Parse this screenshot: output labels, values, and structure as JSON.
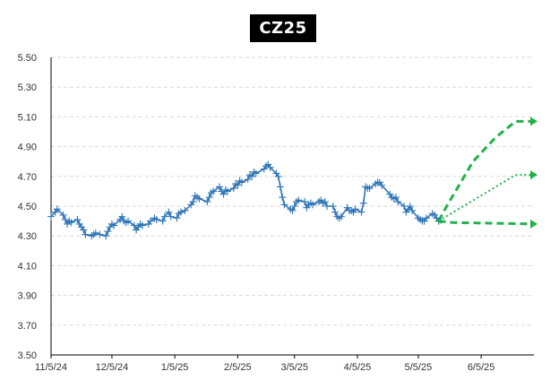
{
  "chart_data": {
    "type": "line",
    "title": "CZ25",
    "xlabel": "",
    "ylabel": "",
    "ylim": [
      3.5,
      5.5
    ],
    "yticks": [
      "5.50",
      "5.30",
      "5.10",
      "4.90",
      "4.70",
      "4.50",
      "4.30",
      "4.10",
      "3.90",
      "3.70",
      "3.50"
    ],
    "xticks": [
      {
        "date": "2024-11-05",
        "label": "11/5/24"
      },
      {
        "date": "2024-12-05",
        "label": "12/5/24"
      },
      {
        "date": "2025-01-05",
        "label": "1/5/25"
      },
      {
        "date": "2025-02-05",
        "label": "2/5/25"
      },
      {
        "date": "2025-03-05",
        "label": "3/5/25"
      },
      {
        "date": "2025-04-05",
        "label": "4/5/25"
      },
      {
        "date": "2025-05-05",
        "label": "5/5/25"
      },
      {
        "date": "2025-06-05",
        "label": "6/5/25"
      }
    ],
    "xlim": [
      "2024-11-05",
      "2025-07-01"
    ],
    "grid": true,
    "legend": "none",
    "series": [
      {
        "color": "#2e75b6",
        "style": "solid",
        "marker": "plus",
        "points": [
          [
            "2024-11-05",
            4.43
          ],
          [
            "2024-11-07",
            4.46
          ],
          [
            "2024-11-08",
            4.48
          ],
          [
            "2024-11-11",
            4.44
          ],
          [
            "2024-11-12",
            4.41
          ],
          [
            "2024-11-13",
            4.38
          ],
          [
            "2024-11-14",
            4.4
          ],
          [
            "2024-11-15",
            4.39
          ],
          [
            "2024-11-18",
            4.41
          ],
          [
            "2024-11-19",
            4.38
          ],
          [
            "2024-11-20",
            4.36
          ],
          [
            "2024-11-21",
            4.34
          ],
          [
            "2024-11-22",
            4.31
          ],
          [
            "2024-11-25",
            4.3
          ],
          [
            "2024-11-26",
            4.31
          ],
          [
            "2024-11-27",
            4.32
          ],
          [
            "2024-11-29",
            4.31
          ],
          [
            "2024-12-02",
            4.3
          ],
          [
            "2024-12-03",
            4.33
          ],
          [
            "2024-12-04",
            4.36
          ],
          [
            "2024-12-05",
            4.38
          ],
          [
            "2024-12-06",
            4.37
          ],
          [
            "2024-12-09",
            4.41
          ],
          [
            "2024-12-10",
            4.43
          ],
          [
            "2024-12-11",
            4.4
          ],
          [
            "2024-12-12",
            4.39
          ],
          [
            "2024-12-13",
            4.4
          ],
          [
            "2024-12-16",
            4.37
          ],
          [
            "2024-12-17",
            4.34
          ],
          [
            "2024-12-18",
            4.36
          ],
          [
            "2024-12-19",
            4.38
          ],
          [
            "2024-12-20",
            4.37
          ],
          [
            "2024-12-23",
            4.38
          ],
          [
            "2024-12-24",
            4.4
          ],
          [
            "2024-12-26",
            4.42
          ],
          [
            "2024-12-27",
            4.41
          ],
          [
            "2024-12-30",
            4.4
          ],
          [
            "2024-12-31",
            4.43
          ],
          [
            "2025-01-02",
            4.46
          ],
          [
            "2025-01-03",
            4.43
          ],
          [
            "2025-01-06",
            4.42
          ],
          [
            "2025-01-07",
            4.45
          ],
          [
            "2025-01-08",
            4.46
          ],
          [
            "2025-01-10",
            4.47
          ],
          [
            "2025-01-13",
            4.51
          ],
          [
            "2025-01-14",
            4.53
          ],
          [
            "2025-01-15",
            4.57
          ],
          [
            "2025-01-16",
            4.56
          ],
          [
            "2025-01-17",
            4.55
          ],
          [
            "2025-01-21",
            4.53
          ],
          [
            "2025-01-22",
            4.56
          ],
          [
            "2025-01-23",
            4.59
          ],
          [
            "2025-01-24",
            4.6
          ],
          [
            "2025-01-27",
            4.63
          ],
          [
            "2025-01-28",
            4.6
          ],
          [
            "2025-01-29",
            4.58
          ],
          [
            "2025-01-30",
            4.61
          ],
          [
            "2025-01-31",
            4.6
          ],
          [
            "2025-02-03",
            4.62
          ],
          [
            "2025-02-04",
            4.65
          ],
          [
            "2025-02-05",
            4.64
          ],
          [
            "2025-02-06",
            4.67
          ],
          [
            "2025-02-07",
            4.66
          ],
          [
            "2025-02-10",
            4.68
          ],
          [
            "2025-02-11",
            4.71
          ],
          [
            "2025-02-12",
            4.7
          ],
          [
            "2025-02-13",
            4.73
          ],
          [
            "2025-02-14",
            4.72
          ],
          [
            "2025-02-18",
            4.75
          ],
          [
            "2025-02-19",
            4.77
          ],
          [
            "2025-02-20",
            4.78
          ],
          [
            "2025-02-21",
            4.76
          ],
          [
            "2025-02-24",
            4.72
          ],
          [
            "2025-02-25",
            4.7
          ],
          [
            "2025-02-26",
            4.63
          ],
          [
            "2025-02-27",
            4.56
          ],
          [
            "2025-02-28",
            4.51
          ],
          [
            "2025-03-03",
            4.48
          ],
          [
            "2025-03-04",
            4.47
          ],
          [
            "2025-03-05",
            4.5
          ],
          [
            "2025-03-06",
            4.53
          ],
          [
            "2025-03-07",
            4.54
          ],
          [
            "2025-03-10",
            4.53
          ],
          [
            "2025-03-11",
            4.49
          ],
          [
            "2025-03-12",
            4.51
          ],
          [
            "2025-03-13",
            4.52
          ],
          [
            "2025-03-14",
            4.51
          ],
          [
            "2025-03-17",
            4.53
          ],
          [
            "2025-03-18",
            4.54
          ],
          [
            "2025-03-19",
            4.52
          ],
          [
            "2025-03-20",
            4.53
          ],
          [
            "2025-03-21",
            4.5
          ],
          [
            "2025-03-24",
            4.5
          ],
          [
            "2025-03-25",
            4.46
          ],
          [
            "2025-03-26",
            4.43
          ],
          [
            "2025-03-27",
            4.42
          ],
          [
            "2025-03-28",
            4.43
          ],
          [
            "2025-03-31",
            4.49
          ],
          [
            "2025-04-01",
            4.47
          ],
          [
            "2025-04-02",
            4.47
          ],
          [
            "2025-04-03",
            4.46
          ],
          [
            "2025-04-04",
            4.48
          ],
          [
            "2025-04-07",
            4.46
          ],
          [
            "2025-04-08",
            4.52
          ],
          [
            "2025-04-09",
            4.63
          ],
          [
            "2025-04-10",
            4.62
          ],
          [
            "2025-04-11",
            4.62
          ],
          [
            "2025-04-14",
            4.65
          ],
          [
            "2025-04-15",
            4.66
          ],
          [
            "2025-04-16",
            4.66
          ],
          [
            "2025-04-17",
            4.64
          ],
          [
            "2025-04-21",
            4.58
          ],
          [
            "2025-04-22",
            4.56
          ],
          [
            "2025-04-23",
            4.55
          ],
          [
            "2025-04-24",
            4.56
          ],
          [
            "2025-04-25",
            4.53
          ],
          [
            "2025-04-28",
            4.5
          ],
          [
            "2025-04-29",
            4.46
          ],
          [
            "2025-04-30",
            4.48
          ],
          [
            "2025-05-01",
            4.5
          ],
          [
            "2025-05-02",
            4.47
          ],
          [
            "2025-05-05",
            4.42
          ],
          [
            "2025-05-06",
            4.41
          ],
          [
            "2025-05-07",
            4.4
          ],
          [
            "2025-05-08",
            4.4
          ],
          [
            "2025-05-09",
            4.42
          ],
          [
            "2025-05-12",
            4.45
          ],
          [
            "2025-05-13",
            4.44
          ],
          [
            "2025-05-14",
            4.42
          ],
          [
            "2025-05-15",
            4.4
          ]
        ]
      },
      {
        "color": "#22b14c",
        "style": "dashed",
        "marker": "triangle",
        "points": [
          [
            "2025-05-15",
            4.4
          ],
          [
            "2025-05-19",
            4.5
          ],
          [
            "2025-06-01",
            4.8
          ],
          [
            "2025-06-12",
            4.96
          ],
          [
            "2025-06-22",
            5.07
          ],
          [
            "2025-07-01",
            5.07
          ]
        ]
      },
      {
        "color": "#22b14c",
        "style": "dotted",
        "marker": "triangle",
        "points": [
          [
            "2025-05-15",
            4.4
          ],
          [
            "2025-06-22",
            4.71
          ],
          [
            "2025-07-01",
            4.71
          ]
        ]
      },
      {
        "color": "#22b14c",
        "style": "dashed",
        "marker": "triangle",
        "points": [
          [
            "2025-05-15",
            4.4
          ],
          [
            "2025-05-22",
            4.39
          ],
          [
            "2025-07-01",
            4.38
          ]
        ]
      }
    ]
  }
}
